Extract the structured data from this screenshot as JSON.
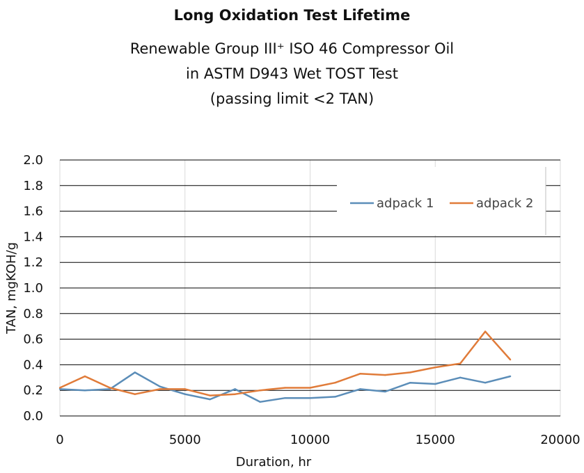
{
  "chart_data": {
    "type": "line",
    "title": "Long Oxidation Test Lifetime",
    "subtitle": [
      "Renewable Group III⁺ ISO 46 Compressor Oil",
      "in ASTM D943 Wet TOST Test",
      "(passing limit <2 TAN)"
    ],
    "xlabel": "Duration, hr",
    "ylabel": "TAN, mgKOH/g",
    "xlim": [
      0,
      20000
    ],
    "ylim": [
      0,
      2.0
    ],
    "xticks": [
      "0",
      "5000",
      "10000",
      "15000",
      "20000"
    ],
    "yticks": [
      "0.0",
      "0.2",
      "0.4",
      "0.6",
      "0.8",
      "1.0",
      "1.2",
      "1.4",
      "1.6",
      "1.8",
      "2.0"
    ],
    "legend_position": "top-right",
    "series": [
      {
        "name": "adpack 1",
        "color": "#5b8db8",
        "x": [
          0,
          1000,
          2000,
          3000,
          4000,
          5000,
          6000,
          7000,
          8000,
          9000,
          10000,
          11000,
          12000,
          13000,
          14000,
          15000,
          16000,
          17000,
          18000
        ],
        "y": [
          0.21,
          0.2,
          0.21,
          0.34,
          0.23,
          0.17,
          0.13,
          0.21,
          0.11,
          0.14,
          0.14,
          0.15,
          0.21,
          0.19,
          0.26,
          0.25,
          0.3,
          0.26,
          0.31
        ]
      },
      {
        "name": "adpack 2",
        "color": "#e07b39",
        "x": [
          0,
          1000,
          2000,
          3000,
          4000,
          5000,
          6000,
          7000,
          8000,
          9000,
          10000,
          11000,
          12000,
          13000,
          14000,
          15000,
          16000,
          17000,
          18000
        ],
        "y": [
          0.22,
          0.31,
          0.22,
          0.17,
          0.21,
          0.21,
          0.16,
          0.17,
          0.2,
          0.22,
          0.22,
          0.26,
          0.33,
          0.32,
          0.34,
          0.38,
          0.41,
          0.66,
          0.44
        ]
      }
    ]
  }
}
